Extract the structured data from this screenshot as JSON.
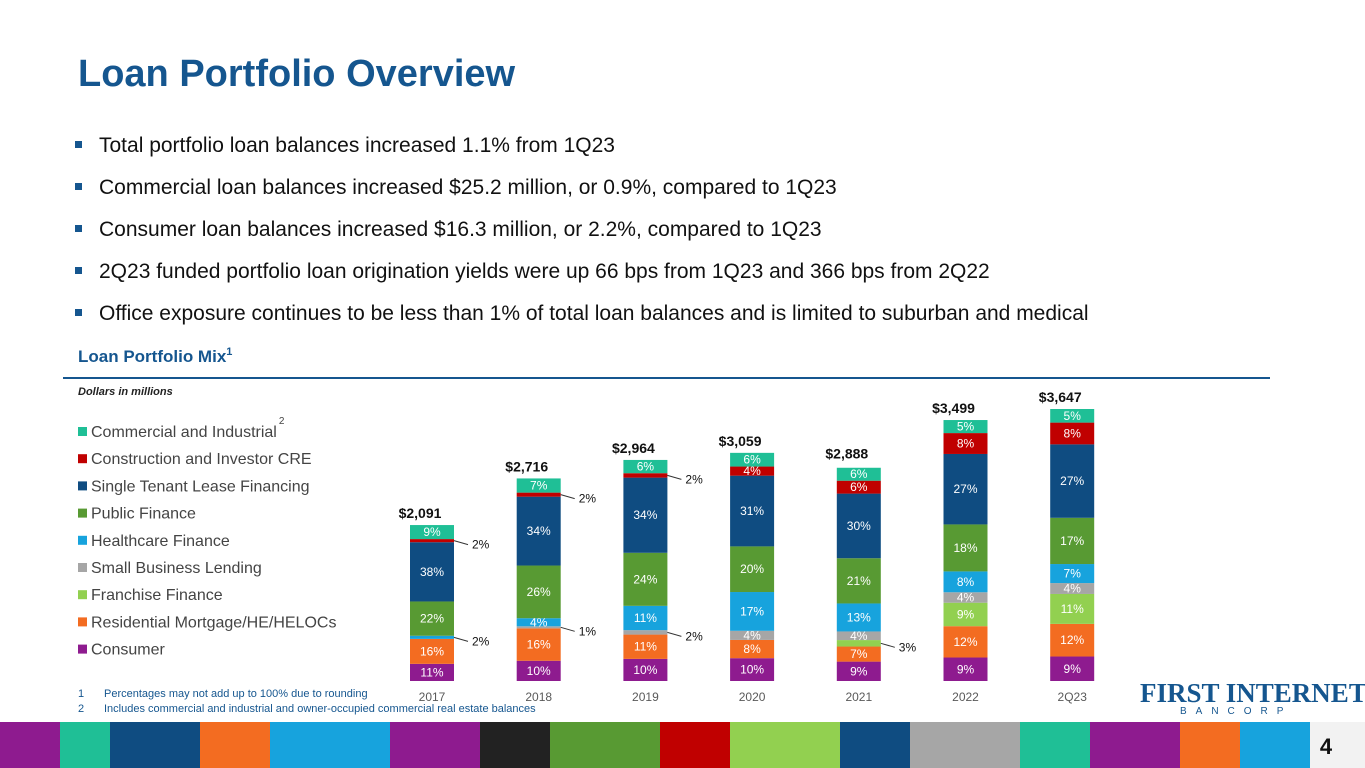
{
  "title": "Loan Portfolio Overview",
  "bullets": [
    "Total portfolio loan balances increased 1.1% from 1Q23",
    "Commercial loan balances increased $25.2 million, or 0.9%, compared to 1Q23",
    "Consumer loan balances increased $16.3 million, or 2.2%, compared to 1Q23",
    "2Q23 funded portfolio loan origination yields were up 66 bps from 1Q23 and 366 bps from 2Q22",
    "Office exposure continues to be less than 1% of total loan balances and is limited to suburban and medical"
  ],
  "section_title": "Loan Portfolio Mix",
  "section_title_note": "1",
  "chart_data": {
    "type": "stacked-bar",
    "subtitle": "Dollars in millions",
    "legend_note": "2",
    "categories": [
      "2017",
      "2018",
      "2019",
      "2020",
      "2021",
      "2022",
      "2Q23"
    ],
    "totals": {
      "values": [
        2091,
        2716,
        2964,
        3059,
        2888,
        3499,
        3647
      ],
      "value_labels": [
        "$2,091",
        "$2,716",
        "$2,964",
        "$3,059",
        "$2,888",
        "$3,499",
        "$3,647"
      ]
    },
    "series": [
      {
        "name": "Consumer",
        "color": "#8e1b8f",
        "values": [
          11,
          10,
          10,
          10,
          9,
          9,
          9
        ],
        "value_labels": [
          "11%",
          "10%",
          "10%",
          "10%",
          "9%",
          "9%",
          "9%"
        ]
      },
      {
        "name": "Residential Mortgage/HE/HELOCs",
        "color": "#f36c21",
        "values": [
          16,
          16,
          11,
          8,
          7,
          12,
          12
        ],
        "value_labels": [
          "16%",
          "16%",
          "11%",
          "8%",
          "7%",
          "12%",
          "12%"
        ]
      },
      {
        "name": "Franchise Finance",
        "color": "#92d050",
        "values": [
          null,
          null,
          null,
          null,
          3,
          9,
          11
        ],
        "value_labels": [
          null,
          null,
          null,
          null,
          "3%",
          "9%",
          "11%"
        ]
      },
      {
        "name": "Small Business Lending",
        "color": "#a6a6a6",
        "values": [
          null,
          1,
          2,
          4,
          4,
          4,
          4
        ],
        "value_labels": [
          null,
          "1%",
          "2%",
          "4%",
          "4%",
          "4%",
          "4%"
        ]
      },
      {
        "name": "Healthcare Finance",
        "color": "#17a3dd",
        "values": [
          2,
          4,
          11,
          17,
          13,
          8,
          7
        ],
        "value_labels": [
          "2%",
          "4%",
          "11%",
          "17%",
          "13%",
          "8%",
          "7%"
        ]
      },
      {
        "name": "Public Finance",
        "color": "#589a33",
        "values": [
          22,
          26,
          24,
          20,
          21,
          18,
          17
        ],
        "value_labels": [
          "22%",
          "26%",
          "24%",
          "20%",
          "21%",
          "18%",
          "17%"
        ]
      },
      {
        "name": "Single Tenant Lease Financing",
        "color": "#0f4c81",
        "values": [
          38,
          34,
          34,
          31,
          30,
          27,
          27
        ],
        "value_labels": [
          "38%",
          "34%",
          "34%",
          "31%",
          "30%",
          "27%",
          "27%"
        ]
      },
      {
        "name": "Construction and Investor CRE",
        "color": "#c00000",
        "values": [
          2,
          2,
          2,
          4,
          6,
          8,
          8
        ],
        "value_labels": [
          "2%",
          "2%",
          "2%",
          "4%",
          "6%",
          "8%",
          "8%"
        ]
      },
      {
        "name": "Commercial and Industrial",
        "color": "#1fbf96",
        "values": [
          9,
          7,
          6,
          6,
          6,
          5,
          5
        ],
        "value_labels": [
          "9%",
          "7%",
          "6%",
          "6%",
          "6%",
          "5%",
          "5%"
        ]
      }
    ]
  },
  "footnotes": [
    {
      "number": "1",
      "text": "Percentages may not add up to 100% due to rounding"
    },
    {
      "number": "2",
      "text": "Includes commercial and industrial and owner-occupied commercial real estate balances"
    }
  ],
  "logo": {
    "name": "FIRST INTERNET",
    "sub": "BANCORP"
  },
  "page_number": "4"
}
